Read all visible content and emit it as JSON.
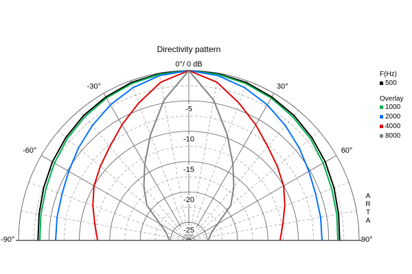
{
  "chart_data": {
    "type": "polar",
    "title": "Directivity pattern",
    "db_ticks": [
      "0°/ 0 dB",
      "-5",
      "-10",
      "-15",
      "-20",
      "-25"
    ],
    "db_values": [
      0,
      -5,
      -10,
      -15,
      -20,
      -25
    ],
    "db_range": [
      -28,
      0
    ],
    "angle_range_deg": [
      -90,
      90
    ],
    "angle_labels": [
      {
        "angle": -90,
        "label": "-90°"
      },
      {
        "angle": -60,
        "label": "-60°"
      },
      {
        "angle": -30,
        "label": "-30°"
      },
      {
        "angle": 30,
        "label": "30°"
      },
      {
        "angle": 60,
        "label": "60°"
      },
      {
        "angle": 90,
        "label": "90°"
      }
    ],
    "grid": true,
    "legend": {
      "position": "right",
      "header": "F(Hz)",
      "overlay_header": "Overlay"
    },
    "brand": "ARTA",
    "angles_deg": [
      0,
      10,
      20,
      30,
      40,
      50,
      60,
      70,
      80,
      90
    ],
    "series": [
      {
        "name": "500",
        "color": "#000000",
        "db": [
          0,
          -0.1,
          -0.3,
          -0.7,
          -1.1,
          -1.6,
          -2.1,
          -2.6,
          -3.0,
          -3.2
        ]
      },
      {
        "name": "1000",
        "color": "#00b050",
        "db": [
          0,
          -0.2,
          -0.5,
          -0.9,
          -1.4,
          -1.9,
          -2.5,
          -3.0,
          -3.3,
          -3.5
        ]
      },
      {
        "name": "2000",
        "color": "#0070ff",
        "db": [
          0,
          -0.4,
          -1.2,
          -2.2,
          -3.3,
          -4.3,
          -5.2,
          -5.8,
          -6.0,
          -6.1
        ]
      },
      {
        "name": "4000",
        "color": "#e00000",
        "db": [
          0,
          -1.5,
          -3.9,
          -6.0,
          -7.8,
          -9.0,
          -10.0,
          -11.2,
          -12.3,
          -13.0
        ]
      },
      {
        "name": "8000",
        "color": "#808080",
        "db": [
          0,
          -4.5,
          -9.5,
          -13.5,
          -16.5,
          -19.0,
          -22.5,
          -24.0,
          -24.5,
          -24.8
        ]
      }
    ]
  }
}
